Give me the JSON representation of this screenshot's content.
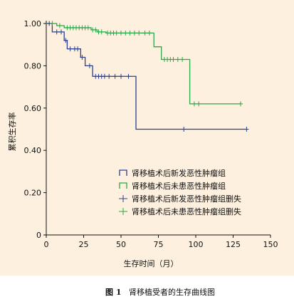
{
  "caption": {
    "label": "图 1",
    "text": "肾移植受者的生存曲线图"
  },
  "chart_data": {
    "type": "line",
    "xlabel": "生存时间（月）",
    "ylabel": "累积生存率",
    "xlim": [
      0,
      150
    ],
    "ylim": [
      0,
      1.0
    ],
    "xticks": [
      0,
      25,
      50,
      75,
      100,
      125,
      150
    ],
    "yticks": [
      0,
      0.2,
      0.4,
      0.6,
      0.8,
      1.0
    ],
    "xtick_labels": [
      "0",
      "25",
      "50",
      "75",
      "100",
      "125",
      "150"
    ],
    "ytick_labels": [
      "0",
      "0.20",
      "0.40",
      "0.60",
      "0.80",
      "1.00"
    ],
    "legend_position": "lower-right",
    "legend": [
      {
        "text": "肾移植术后新发恶性肿瘤组",
        "series": 0,
        "kind": "curve"
      },
      {
        "text": "肾移植术后未患恶性肿瘤组",
        "series": 1,
        "kind": "curve"
      },
      {
        "text": "肾移植术后新发恶性肿瘤组删失",
        "series": 0,
        "kind": "censor"
      },
      {
        "text": "肾移植术后未患恶性肿瘤组删失",
        "series": 1,
        "kind": "censor"
      }
    ],
    "series": [
      {
        "color": "#2e3f8f",
        "steps": [
          [
            0,
            1.0
          ],
          [
            4,
            0.96
          ],
          [
            12,
            0.92
          ],
          [
            14,
            0.88
          ],
          [
            23,
            0.84
          ],
          [
            26,
            0.8
          ],
          [
            31,
            0.75
          ],
          [
            60,
            0.5
          ],
          [
            134,
            0.5
          ]
        ],
        "censored": [
          [
            2,
            1.0
          ],
          [
            7,
            0.96
          ],
          [
            10,
            0.96
          ],
          [
            13,
            0.92
          ],
          [
            16,
            0.88
          ],
          [
            19,
            0.88
          ],
          [
            21,
            0.88
          ],
          [
            24,
            0.84
          ],
          [
            29,
            0.8
          ],
          [
            33,
            0.75
          ],
          [
            35,
            0.75
          ],
          [
            37,
            0.75
          ],
          [
            39,
            0.75
          ],
          [
            42,
            0.75
          ],
          [
            46,
            0.75
          ],
          [
            50,
            0.75
          ],
          [
            55,
            0.75
          ],
          [
            92,
            0.5
          ],
          [
            134,
            0.5
          ]
        ]
      },
      {
        "color": "#2aa84a",
        "steps": [
          [
            0,
            1.0
          ],
          [
            7,
            0.99
          ],
          [
            12,
            0.98
          ],
          [
            30,
            0.97
          ],
          [
            34,
            0.96
          ],
          [
            40,
            0.955
          ],
          [
            72,
            0.89
          ],
          [
            77,
            0.83
          ],
          [
            96,
            0.62
          ],
          [
            130,
            0.62
          ]
        ],
        "censored": [
          [
            4,
            1.0
          ],
          [
            9,
            0.99
          ],
          [
            14,
            0.98
          ],
          [
            16,
            0.98
          ],
          [
            18,
            0.98
          ],
          [
            20,
            0.98
          ],
          [
            22,
            0.98
          ],
          [
            24,
            0.98
          ],
          [
            26,
            0.98
          ],
          [
            28,
            0.98
          ],
          [
            31,
            0.97
          ],
          [
            33,
            0.97
          ],
          [
            35,
            0.96
          ],
          [
            37,
            0.96
          ],
          [
            41,
            0.955
          ],
          [
            43,
            0.955
          ],
          [
            45,
            0.955
          ],
          [
            47,
            0.955
          ],
          [
            50,
            0.955
          ],
          [
            53,
            0.955
          ],
          [
            56,
            0.955
          ],
          [
            59,
            0.955
          ],
          [
            62,
            0.955
          ],
          [
            66,
            0.955
          ],
          [
            69,
            0.955
          ],
          [
            79,
            0.83
          ],
          [
            81,
            0.83
          ],
          [
            83,
            0.83
          ],
          [
            85,
            0.83
          ],
          [
            88,
            0.83
          ],
          [
            91,
            0.83
          ],
          [
            99,
            0.62
          ],
          [
            102,
            0.62
          ],
          [
            130,
            0.62
          ]
        ]
      }
    ]
  }
}
